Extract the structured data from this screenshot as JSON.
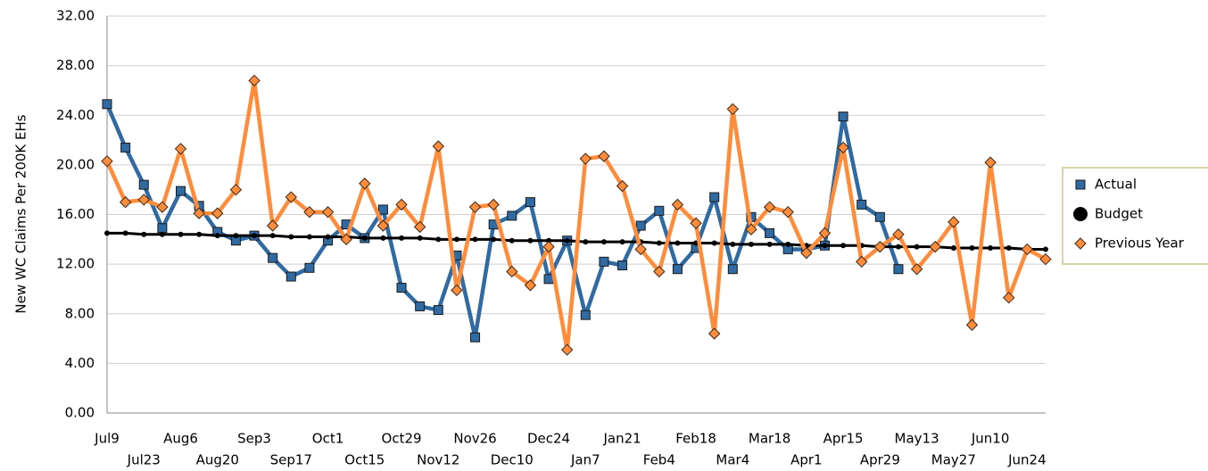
{
  "chart_data": {
    "type": "line",
    "y_label": "New WC Claims Per 200K EHs",
    "categories": [
      "Jul9",
      null,
      "Jul23",
      null,
      "Aug6",
      null,
      "Aug20",
      null,
      "Sep3",
      null,
      "Sep17",
      null,
      "Oct1",
      null,
      "Oct15",
      null,
      "Oct29",
      null,
      "Nov12",
      null,
      "Nov26",
      null,
      "Dec10",
      null,
      "Dec24",
      null,
      "Jan7",
      null,
      "Jan21",
      null,
      "Feb4",
      null,
      "Feb18",
      null,
      "Mar4",
      null,
      "Mar18",
      null,
      "Apr1",
      null,
      "Apr15",
      null,
      "Apr29",
      null,
      "May13",
      null,
      "May27",
      null,
      "Jun10",
      null,
      "Jun24",
      null
    ],
    "series": [
      {
        "name": "Actual",
        "color": "#2f6aa3",
        "marker": "square",
        "values": [
          24.9,
          21.4,
          18.4,
          14.9,
          17.9,
          16.7,
          14.6,
          13.9,
          14.3,
          12.5,
          11.0,
          11.7,
          13.9,
          15.2,
          14.1,
          16.4,
          10.1,
          8.6,
          8.3,
          12.7,
          6.1,
          15.2,
          15.9,
          17.0,
          10.8,
          13.9,
          7.9,
          12.2,
          11.9,
          15.1,
          16.3,
          11.6,
          13.3,
          17.4,
          11.6,
          15.8,
          14.5,
          13.2,
          13.2,
          13.5,
          23.9,
          16.8,
          15.8,
          11.6,
          null,
          null,
          null,
          null,
          null,
          null,
          null,
          null
        ]
      },
      {
        "name": "Budget",
        "color": "#000000",
        "marker": "circle",
        "values": [
          14.5,
          14.5,
          14.4,
          14.4,
          14.4,
          14.4,
          14.3,
          14.3,
          14.3,
          14.3,
          14.2,
          14.2,
          14.2,
          14.2,
          14.1,
          14.1,
          14.1,
          14.1,
          14.0,
          14.0,
          14.0,
          14.0,
          13.9,
          13.9,
          13.9,
          13.9,
          13.8,
          13.8,
          13.8,
          13.8,
          13.7,
          13.7,
          13.7,
          13.7,
          13.6,
          13.6,
          13.6,
          13.6,
          13.5,
          13.5,
          13.5,
          13.5,
          13.4,
          13.4,
          13.4,
          13.4,
          13.3,
          13.3,
          13.3,
          13.3,
          13.2,
          13.2
        ]
      },
      {
        "name": "Previous Year",
        "color": "#ff8c3a",
        "marker": "diamond",
        "values": [
          20.3,
          17.0,
          17.2,
          16.6,
          21.3,
          16.1,
          16.1,
          18.0,
          26.8,
          15.1,
          17.4,
          16.2,
          16.2,
          14.0,
          18.5,
          15.1,
          16.8,
          15.0,
          21.5,
          9.9,
          16.6,
          16.8,
          11.4,
          10.3,
          13.4,
          5.1,
          20.5,
          20.7,
          18.3,
          13.2,
          11.4,
          16.8,
          15.3,
          6.4,
          24.5,
          14.8,
          16.6,
          16.2,
          12.9,
          14.5,
          21.4,
          12.2,
          13.4,
          14.4,
          11.6,
          13.4,
          15.4,
          7.1,
          20.2,
          9.3,
          13.2,
          12.4
        ]
      }
    ],
    "ylim": [
      0,
      32
    ],
    "yticks": [
      {
        "value": 0,
        "label": "0.00"
      },
      {
        "value": 4,
        "label": "4.00"
      },
      {
        "value": 8,
        "label": "8.00"
      },
      {
        "value": 12,
        "label": "12.00"
      },
      {
        "value": 16,
        "label": "16.00"
      },
      {
        "value": 20,
        "label": "20.00"
      },
      {
        "value": 24,
        "label": "24.00"
      },
      {
        "value": 28,
        "label": "28.00"
      },
      {
        "value": 32,
        "label": "32.00"
      }
    ],
    "grid": true,
    "legend": "right"
  }
}
